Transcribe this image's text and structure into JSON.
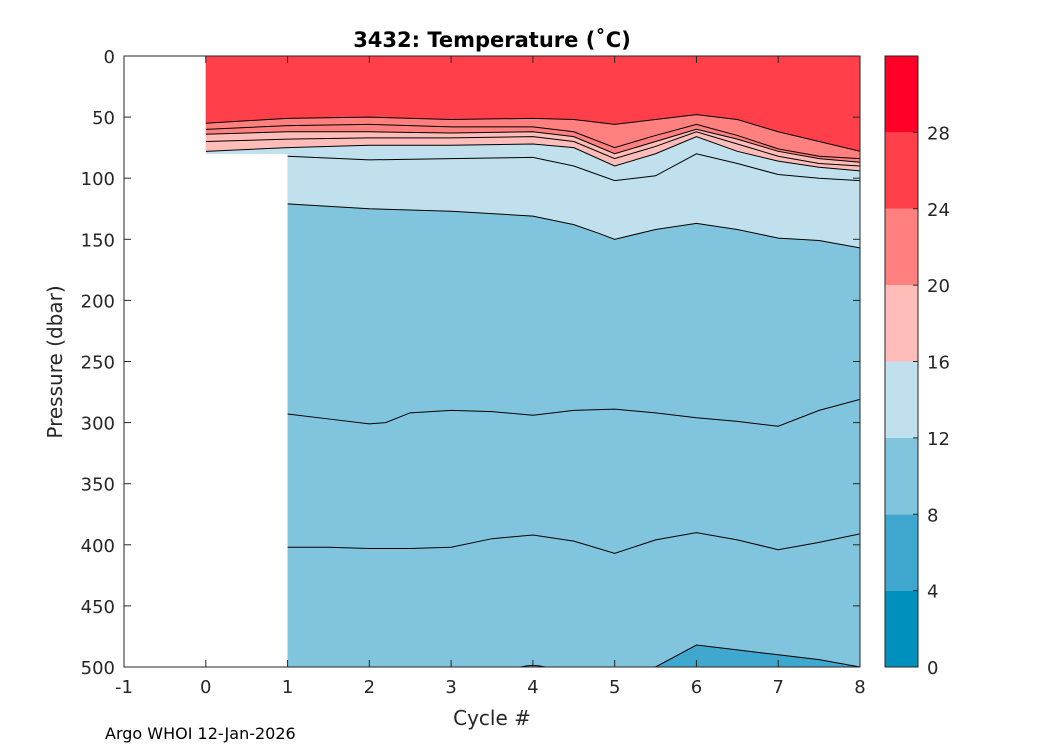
{
  "chart_data": {
    "type": "contour",
    "title": "3432:  Temperature (˚C)",
    "xlabel": "Cycle #",
    "ylabel": "Pressure (dbar)",
    "xlim": [
      -1,
      8
    ],
    "ylim": [
      0,
      500
    ],
    "y_reversed": true,
    "x_ticks": [
      "-1",
      "0",
      "1",
      "2",
      "3",
      "4",
      "5",
      "6",
      "7",
      "8"
    ],
    "y_ticks": [
      "0",
      "50",
      "100",
      "150",
      "200",
      "250",
      "300",
      "350",
      "400",
      "450",
      "500"
    ],
    "colorbar": {
      "range": [
        0,
        32
      ],
      "ticks": [
        "0",
        "4",
        "8",
        "12",
        "16",
        "20",
        "24",
        "28"
      ],
      "bands": [
        {
          "from": 0,
          "to": 4,
          "color": "#0090BE"
        },
        {
          "from": 4,
          "to": 8,
          "color": "#40A8CE"
        },
        {
          "from": 8,
          "to": 12,
          "color": "#80C4DE"
        },
        {
          "from": 12,
          "to": 16,
          "color": "#BFE0EC"
        },
        {
          "from": 16,
          "to": 20,
          "color": "#FFBDBA"
        },
        {
          "from": 20,
          "to": 24,
          "color": "#FF807E"
        },
        {
          "from": 24,
          "to": 28,
          "color": "#FF404A"
        },
        {
          "from": 28,
          "to": 32,
          "color": "#FF0028"
        }
      ]
    },
    "cycles": [
      0,
      1,
      2,
      3,
      4,
      5,
      6,
      7,
      8
    ],
    "profile_max_pressure": [
      80,
      500,
      500,
      500,
      500,
      500,
      500,
      500,
      500
    ],
    "isotherms": [
      {
        "level": 24,
        "x": [
          0,
          1,
          2,
          3,
          4,
          4.5,
          5,
          5.5,
          6,
          6.5,
          7,
          7.5,
          8
        ],
        "pressure": [
          55,
          51,
          50,
          52,
          51,
          52,
          56,
          52,
          48,
          52,
          62,
          70,
          78
        ]
      },
      {
        "level": 22,
        "x": [
          0,
          1,
          2,
          3,
          4,
          4.5,
          5,
          5.5,
          6,
          6.5,
          7,
          7.5,
          8
        ],
        "pressure": [
          60,
          57,
          56,
          58,
          58,
          62,
          75,
          65,
          56,
          65,
          76,
          82,
          84
        ]
      },
      {
        "level": 20,
        "x": [
          0,
          1,
          2,
          3,
          4,
          4.5,
          5,
          5.5,
          6,
          6.5,
          7,
          7.5,
          8
        ],
        "pressure": [
          64,
          62,
          62,
          63,
          62,
          66,
          80,
          70,
          60,
          68,
          78,
          84,
          87
        ]
      },
      {
        "level": 18,
        "x": [
          0,
          1,
          2,
          3,
          4,
          4.5,
          5,
          5.5,
          6,
          6.5,
          7,
          7.5,
          8
        ],
        "pressure": [
          70,
          68,
          67,
          67,
          66,
          70,
          84,
          74,
          62,
          72,
          82,
          88,
          90
        ]
      },
      {
        "level": 16,
        "x": [
          0,
          1,
          2,
          3,
          4,
          4.5,
          5,
          5.5,
          6,
          6.5,
          7,
          7.5,
          8
        ],
        "pressure": [
          78,
          75,
          73,
          73,
          72,
          75,
          90,
          80,
          66,
          78,
          86,
          91,
          94
        ]
      },
      {
        "level": 14,
        "x": [
          1,
          2,
          3,
          4,
          4.5,
          5,
          5.5,
          6,
          6.5,
          7,
          7.5,
          8
        ],
        "pressure": [
          82,
          85,
          84,
          83,
          90,
          102,
          98,
          80,
          88,
          97,
          100,
          102
        ]
      },
      {
        "level": 12,
        "x": [
          1,
          2,
          3,
          4,
          4.5,
          4.8,
          5,
          5.5,
          6,
          6.5,
          7,
          7.5,
          8
        ],
        "pressure": [
          121,
          125,
          127,
          131,
          138,
          145,
          150,
          142,
          137,
          142,
          149,
          151,
          157
        ]
      },
      {
        "level": 10,
        "x": [
          1,
          1.5,
          2,
          2.2,
          2.5,
          3,
          3.5,
          4,
          4.5,
          5,
          5.5,
          6,
          6.5,
          7,
          7.5,
          8
        ],
        "pressure": [
          293,
          297,
          301,
          300,
          292,
          290,
          291,
          294,
          290,
          289,
          292,
          296,
          299,
          303,
          290,
          281
        ]
      },
      {
        "level": 9,
        "x": [
          1,
          1.5,
          2,
          2.5,
          3,
          3.5,
          4,
          4.5,
          5,
          5.5,
          6,
          6.5,
          7,
          7.5,
          8
        ],
        "pressure": [
          402,
          402,
          403,
          403,
          402,
          395,
          392,
          397,
          407,
          396,
          390,
          396,
          404,
          398,
          391
        ]
      },
      {
        "level": 8,
        "x": [
          5.5,
          6,
          6.5,
          7,
          7.5,
          8
        ],
        "pressure": [
          500,
          482,
          486,
          490,
          494,
          500
        ]
      }
    ],
    "footer": "Argo WHOI 12-Jan-2026"
  }
}
